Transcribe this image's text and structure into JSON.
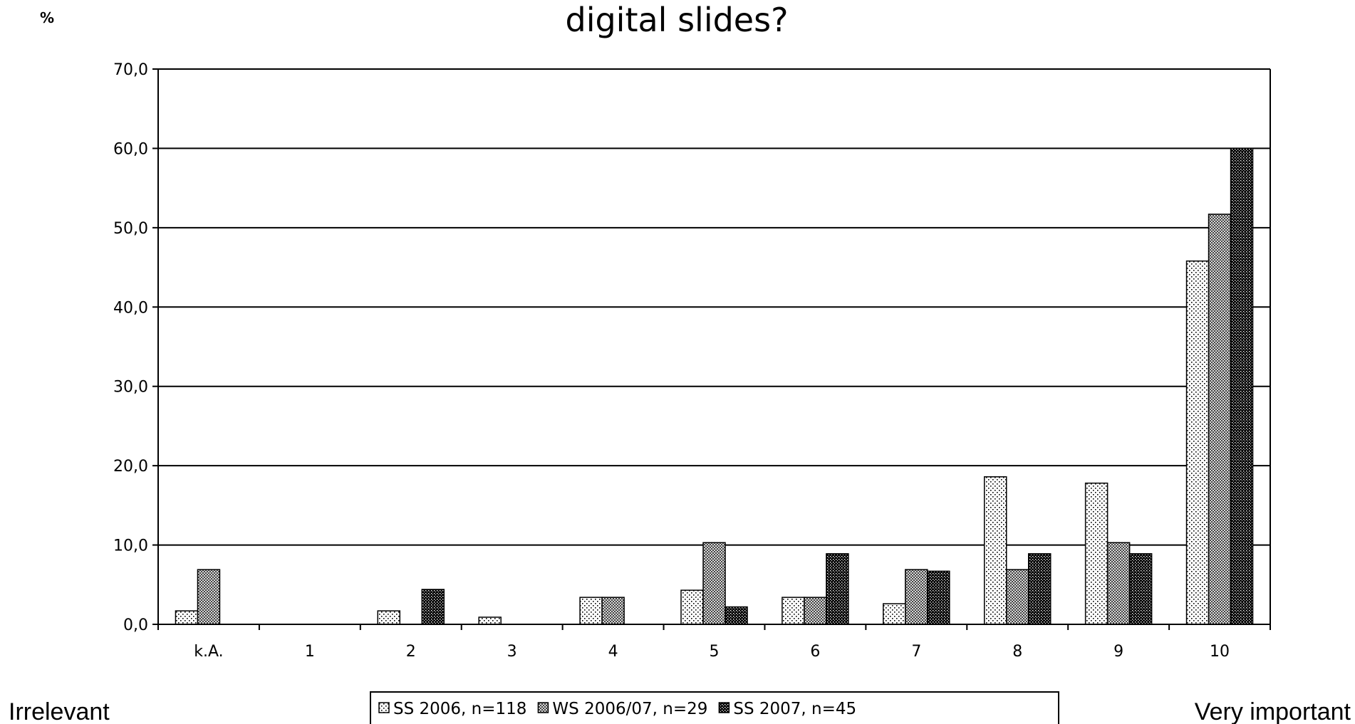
{
  "chart_data": {
    "type": "bar",
    "title": "digital slides?",
    "ylabel": "%",
    "ylim": [
      0,
      70
    ],
    "yticks": [
      "0,0",
      "10,0",
      "20,0",
      "30,0",
      "40,0",
      "50,0",
      "60,0",
      "70,0"
    ],
    "grid": true,
    "categories": [
      "k.A.",
      "1",
      "2",
      "3",
      "4",
      "5",
      "6",
      "7",
      "8",
      "9",
      "10"
    ],
    "series": [
      {
        "name": "SS 2006, n=118",
        "values": [
          1.7,
          0,
          1.7,
          0.9,
          3.4,
          4.3,
          3.4,
          2.6,
          18.6,
          17.8,
          45.8
        ]
      },
      {
        "name": "WS 2006/07, n=29",
        "values": [
          6.9,
          0,
          0,
          0,
          3.4,
          10.3,
          3.4,
          6.9,
          6.9,
          10.3,
          51.7
        ]
      },
      {
        "name": "SS 2007, n=45",
        "values": [
          0,
          0,
          4.4,
          0,
          0,
          2.2,
          8.9,
          6.7,
          8.9,
          8.9,
          60.0
        ]
      }
    ],
    "legend_position": "bottom",
    "scale_low_label": "Irrelevant",
    "scale_high_label": "Very important"
  }
}
